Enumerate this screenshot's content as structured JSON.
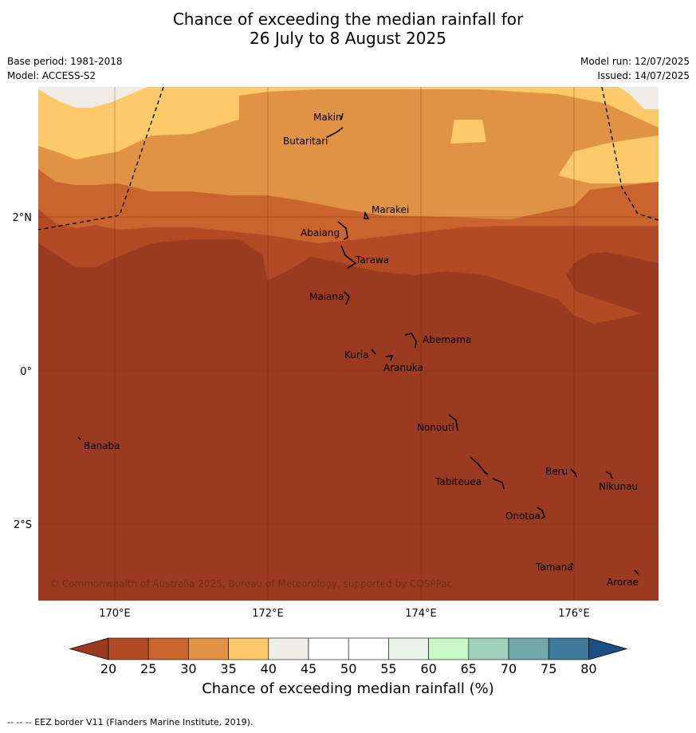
{
  "title_line1": "Chance of exceeding the median rainfall for",
  "title_line2": "26 July to 8 August 2025",
  "base_period": "Base period: 1981-2018",
  "model": "Model: ACCESS-S2",
  "model_run": "Model run: 12/07/2025",
  "issued": "Issued: 14/07/2025",
  "copyright": "© Commonwealth of Australia 2025, Bureau of Meteorology, supported by COSPPac",
  "colorbar": {
    "label": "Chance of exceeding median rainfall (%)",
    "ticks": [
      "20",
      "25",
      "30",
      "35",
      "40",
      "45",
      "50",
      "55",
      "60",
      "65",
      "70",
      "75",
      "80"
    ],
    "colors": [
      "#b34a26",
      "#c9642f",
      "#e09245",
      "#fec96a",
      "#f0ece6",
      "#ffffff",
      "#ffffff",
      "#eaf4e8",
      "#c9f7c6",
      "#9fd0bb",
      "#72a8a9",
      "#3f7a9b",
      "#1b5086"
    ],
    "under_color": "#9a3a20",
    "over_color": "#1b5086"
  },
  "axes": {
    "lon_ticks": [
      "170°E",
      "172°E",
      "174°E",
      "176°E"
    ],
    "lat_ticks": [
      "2°N",
      "0°",
      "2°S"
    ]
  },
  "places": [
    {
      "name": "Makin"
    },
    {
      "name": "Butaritari"
    },
    {
      "name": "Marakei"
    },
    {
      "name": "Abaiang"
    },
    {
      "name": "Tarawa"
    },
    {
      "name": "Maiana"
    },
    {
      "name": "Abemama"
    },
    {
      "name": "Kuria"
    },
    {
      "name": "Aranuka"
    },
    {
      "name": "Banaba"
    },
    {
      "name": "Nonouti"
    },
    {
      "name": "Beru"
    },
    {
      "name": "Tabiteuea"
    },
    {
      "name": "Nikunau"
    },
    {
      "name": "Onotoa"
    },
    {
      "name": "Tamana"
    },
    {
      "name": "Arorae"
    }
  ],
  "footer": "-- -- -- EEZ border V11 (Flanders Marine Institute, 2019)."
}
